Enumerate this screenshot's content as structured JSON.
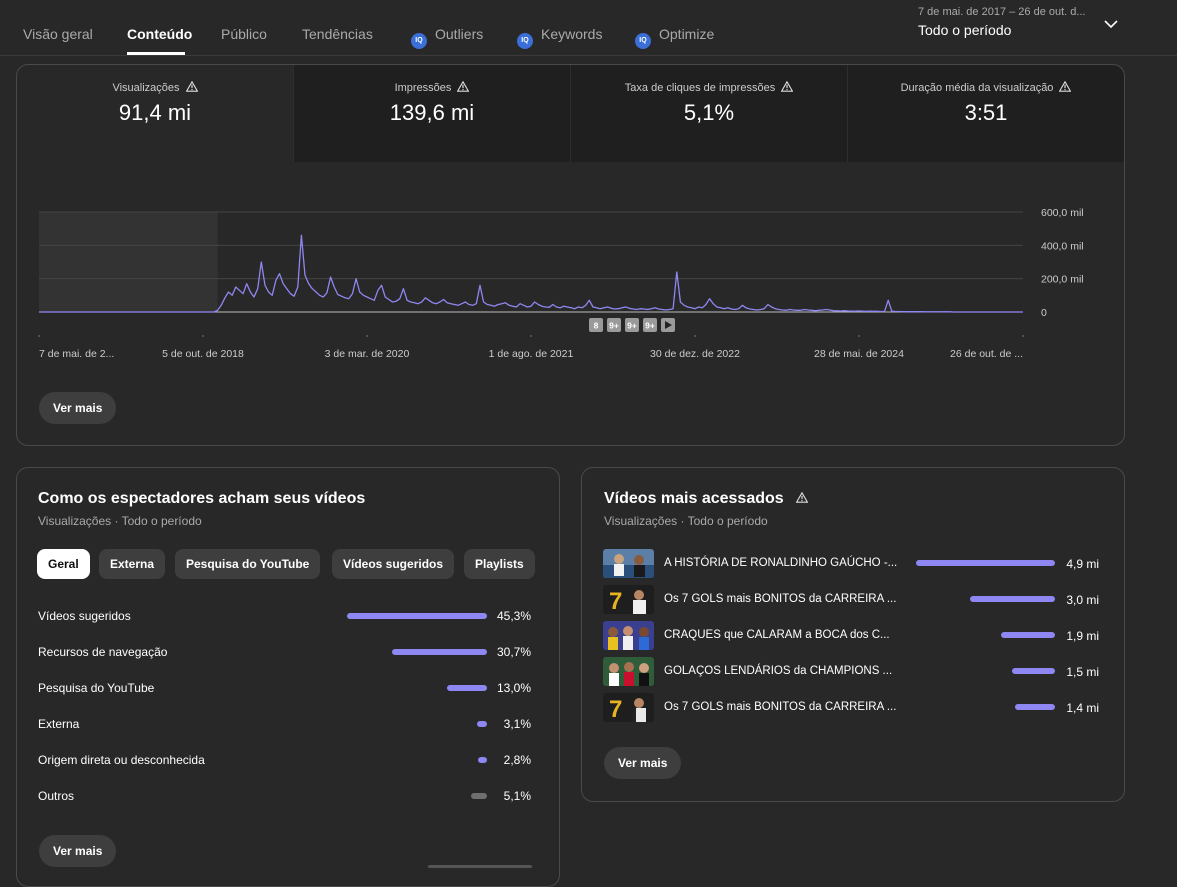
{
  "tabs": [
    {
      "label": "Visão geral"
    },
    {
      "label": "Conteúdo"
    },
    {
      "label": "Público"
    },
    {
      "label": "Tendências"
    },
    {
      "label": "Outliers",
      "icon": "extension-badge-icon"
    },
    {
      "label": "Keywords",
      "icon": "extension-badge-icon"
    },
    {
      "label": "Optimize",
      "icon": "extension-badge-icon"
    }
  ],
  "ext_badge": "IQ",
  "period": {
    "range": "7 de mai. de 2017 – 26 de out. d...",
    "label": "Todo o período"
  },
  "metrics": [
    {
      "label": "Visualizações",
      "value": "91,4 mi"
    },
    {
      "label": "Impressões",
      "value": "139,6 mi"
    },
    {
      "label": "Taxa de cliques de impressões",
      "value": "5,1%"
    },
    {
      "label": "Duração média da visualização",
      "value": "3:51"
    }
  ],
  "chart_data": {
    "type": "line",
    "series": [
      {
        "values": [
          0,
          0,
          0,
          0,
          0,
          0,
          0,
          0,
          0,
          0,
          0,
          0,
          0,
          0,
          0,
          0,
          0,
          0,
          0,
          0,
          0,
          0,
          0,
          0,
          0,
          0,
          0,
          0,
          0,
          0,
          0,
          0,
          0,
          0,
          0,
          0,
          0,
          0,
          0,
          0,
          0,
          0,
          0,
          0,
          0,
          0,
          0,
          0,
          0,
          10000,
          40000,
          85000,
          120000,
          100000,
          150000,
          130000,
          110000,
          170000,
          120000,
          90000,
          140000,
          300000,
          160000,
          120000,
          100000,
          190000,
          230000,
          170000,
          140000,
          110000,
          95000,
          150000,
          460000,
          220000,
          170000,
          140000,
          120000,
          100000,
          90000,
          115000,
          210000,
          150000,
          105000,
          95000,
          85000,
          80000,
          110000,
          200000,
          120000,
          100000,
          90000,
          80000,
          70000,
          130000,
          160000,
          90000,
          75000,
          60000,
          65000,
          80000,
          140000,
          70000,
          60000,
          55000,
          50000,
          60000,
          85000,
          70000,
          55000,
          50000,
          60000,
          75000,
          55000,
          50000,
          45000,
          40000,
          50000,
          60000,
          45000,
          40000,
          50000,
          160000,
          60000,
          45000,
          40000,
          35000,
          45000,
          50000,
          55000,
          40000,
          35000,
          30000,
          50000,
          40000,
          30000,
          35000,
          60000,
          45000,
          35000,
          30000,
          28000,
          45000,
          30000,
          25000,
          35000,
          30000,
          25000,
          20000,
          30000,
          25000,
          40000,
          70000,
          30000,
          25000,
          20000,
          25000,
          30000,
          22000,
          18000,
          20000,
          25000,
          30000,
          22000,
          18000,
          15000,
          20000,
          18000,
          15000,
          20000,
          25000,
          18000,
          15000,
          12000,
          15000,
          20000,
          240000,
          60000,
          40000,
          30000,
          25000,
          20000,
          30000,
          25000,
          45000,
          80000,
          50000,
          30000,
          25000,
          20000,
          25000,
          18000,
          15000,
          20000,
          40000,
          25000,
          18000,
          15000,
          12000,
          15000,
          20000,
          45000,
          30000,
          20000,
          15000,
          12000,
          10000,
          15000,
          12000,
          10000,
          10000,
          15000,
          12000,
          10000,
          8000,
          10000,
          12000,
          15000,
          12000,
          8000,
          7000,
          6000,
          8000,
          6000,
          5000,
          5000,
          6000,
          5000,
          4000,
          5000,
          4000,
          4000,
          3000,
          3000,
          70000,
          5000,
          3000,
          3000,
          2000,
          2000,
          2000,
          2000,
          2000,
          2000,
          1000,
          1000,
          1000,
          1000,
          1000,
          1000,
          1000,
          1000,
          0,
          0,
          0,
          0,
          0,
          0,
          0,
          0,
          0,
          0,
          0,
          0,
          0,
          0,
          0,
          0,
          0,
          0,
          0,
          0
        ]
      }
    ],
    "x_ticks": [
      "7 de mai. de 2...",
      "5 de out. de 2018",
      "3 de mar. de 2020",
      "1 de ago. de 2021",
      "30 de dez. de 2022",
      "28 de mai. de 2024",
      "26 de out. de ..."
    ],
    "y_ticks": [
      "0",
      "200,0 mil",
      "400,0 mil",
      "600,0 mil"
    ],
    "ylim": [
      0,
      600000
    ],
    "markers": [
      "8",
      "9+",
      "9+",
      "9+"
    ],
    "line_color": "#8f87f1",
    "grid": true
  },
  "overview_more": "Ver mais",
  "sources": {
    "title": "Como os espectadores acham seus vídeos",
    "subtitle": "Visualizações · Todo o período",
    "chips": [
      {
        "label": "Geral"
      },
      {
        "label": "Externa"
      },
      {
        "label": "Pesquisa do YouTube"
      },
      {
        "label": "Vídeos sugeridos"
      },
      {
        "label": "Playlists"
      }
    ],
    "rows": [
      {
        "label": "Vídeos sugeridos",
        "value": "45,3%",
        "share": 45.3,
        "color": "#8f87f1"
      },
      {
        "label": "Recursos de navegação",
        "value": "30,7%",
        "share": 30.7,
        "color": "#8f87f1"
      },
      {
        "label": "Pesquisa do YouTube",
        "value": "13,0%",
        "share": 13.0,
        "color": "#8f87f1"
      },
      {
        "label": "Externa",
        "value": "3,1%",
        "share": 3.1,
        "color": "#8f87f1"
      },
      {
        "label": "Origem direta ou desconhecida",
        "value": "2,8%",
        "share": 2.8,
        "color": "#8f87f1"
      },
      {
        "label": "Outros",
        "value": "5,1%",
        "share": 5.1,
        "color": "#6f6f6f"
      }
    ],
    "more": "Ver mais"
  },
  "top_videos": {
    "title": "Vídeos mais acessados",
    "subtitle": "Visualizações · Todo o período",
    "rows": [
      {
        "title": "A HISTÓRIA DE RONALDINHO GAÚCHO -...",
        "value": "4,9 mi",
        "views_mi": 4.9
      },
      {
        "title": "Os 7 GOLS mais BONITOS da CARREIRA ...",
        "value": "3,0 mi",
        "views_mi": 3.0
      },
      {
        "title": "CRAQUES que CALARAM a BOCA dos C...",
        "value": "1,9 mi",
        "views_mi": 1.9
      },
      {
        "title": "GOLAÇOS LENDÁRIOS da CHAMPIONS ...",
        "value": "1,5 mi",
        "views_mi": 1.5
      },
      {
        "title": "Os 7 GOLS mais BONITOS da CARREIRA ...",
        "value": "1,4 mi",
        "views_mi": 1.4
      }
    ],
    "more": "Ver mais"
  }
}
